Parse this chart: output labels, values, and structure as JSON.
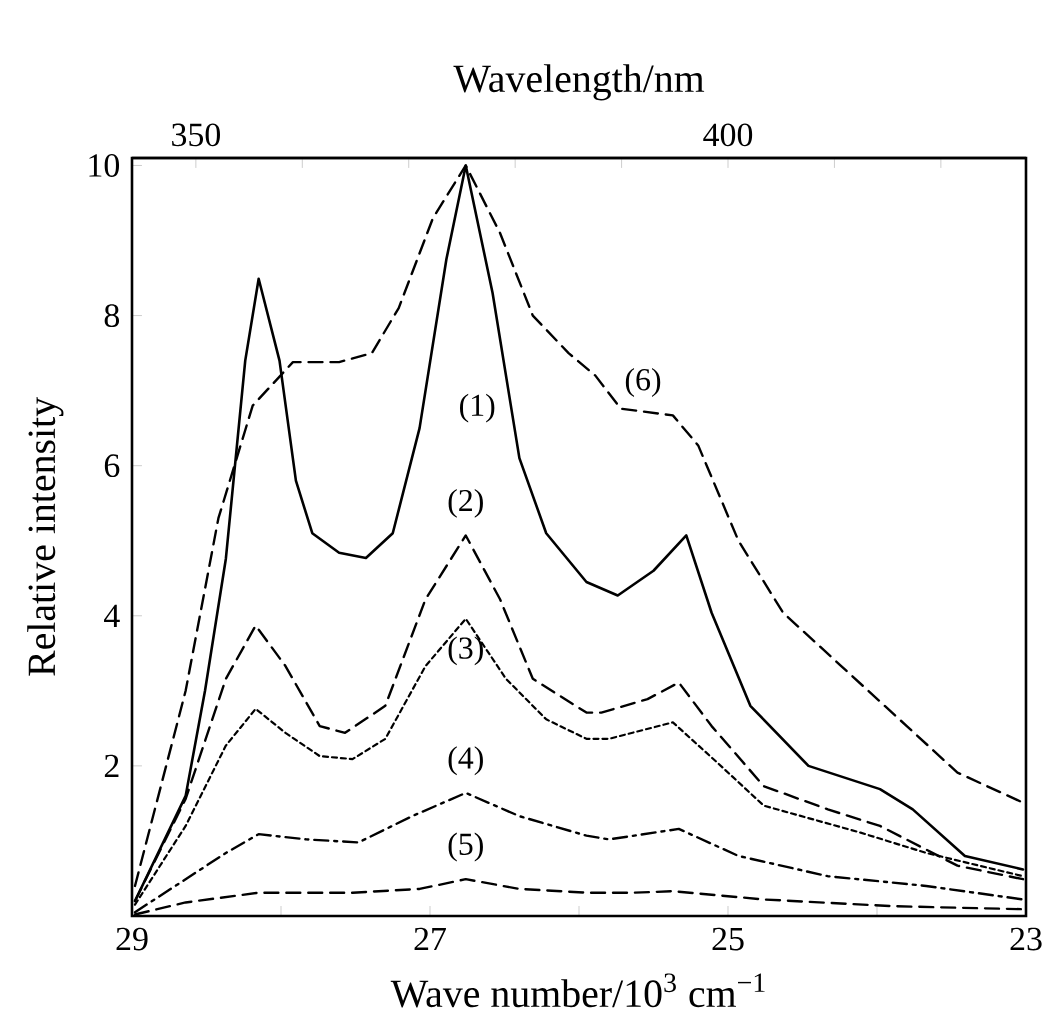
{
  "chart_data": {
    "type": "line",
    "xlabel": "Wave number/10$^{3}$ cm$^{−1}$",
    "ylabel": "Relative intensity",
    "x2label": "Wavelength/nm",
    "xlim": [
      29,
      23
    ],
    "xticks": [
      29,
      {
        "value": 28,
        "label": null
      },
      27,
      {
        "value": 26,
        "label": null
      },
      25,
      {
        "value": 24,
        "label": null
      },
      23
    ],
    "ylim": [
      0,
      10.1
    ],
    "yticks": [
      2,
      4,
      6,
      8,
      10
    ],
    "x2lim": [
      344,
      428
    ],
    "x2ticks": [
      350,
      {
        "value": 360,
        "label": null
      },
      {
        "value": 370,
        "label": null
      },
      {
        "value": 380,
        "label": null
      },
      {
        "value": 390,
        "label": null
      },
      400,
      {
        "value": 410,
        "label": null
      },
      {
        "value": 420,
        "label": null
      }
    ],
    "series": [
      {
        "name": "(1)",
        "color": "#000000",
        "line_style": "solid",
        "x": [
          28.98,
          28.64,
          28.51,
          28.37,
          28.24,
          28.15,
          28.01,
          27.9,
          27.79,
          27.61,
          27.43,
          27.25,
          27.07,
          26.89,
          26.76,
          26.58,
          26.4,
          26.22,
          25.95,
          25.74,
          25.5,
          25.28,
          25.11,
          24.85,
          24.46,
          23.98,
          23.76,
          23.41,
          23.02
        ],
        "values": [
          0.2,
          1.6,
          3.0,
          4.76,
          7.4,
          8.49,
          7.4,
          5.8,
          5.1,
          4.84,
          4.77,
          5.1,
          6.5,
          8.75,
          10.0,
          8.3,
          6.1,
          5.1,
          4.45,
          4.27,
          4.6,
          5.07,
          4.04,
          2.8,
          2.0,
          1.69,
          1.42,
          0.8,
          0.62
        ]
      },
      {
        "name": "(2)",
        "color": "#000000",
        "line_style": "dashed",
        "x": [
          28.98,
          28.64,
          28.37,
          28.17,
          27.97,
          27.74,
          27.57,
          27.3,
          27.03,
          26.76,
          26.53,
          26.31,
          25.95,
          25.85,
          25.54,
          25.33,
          25.11,
          24.76,
          24.33,
          23.98,
          23.46,
          23.02
        ],
        "values": [
          0.2,
          1.56,
          3.16,
          3.87,
          3.33,
          2.53,
          2.44,
          2.8,
          4.22,
          5.07,
          4.22,
          3.16,
          2.71,
          2.71,
          2.89,
          3.11,
          2.53,
          1.73,
          1.42,
          1.2,
          0.67,
          0.49
        ]
      },
      {
        "name": "(3)",
        "color": "#000000",
        "line_style": "dotted",
        "x": [
          28.98,
          28.64,
          28.37,
          28.17,
          27.97,
          27.74,
          27.52,
          27.3,
          27.03,
          26.76,
          26.49,
          26.22,
          25.95,
          25.8,
          25.37,
          25.07,
          24.76,
          24.11,
          23.67,
          23.02
        ],
        "values": [
          0.15,
          1.2,
          2.27,
          2.76,
          2.44,
          2.13,
          2.09,
          2.36,
          3.33,
          3.96,
          3.16,
          2.62,
          2.36,
          2.36,
          2.58,
          2.04,
          1.47,
          1.11,
          0.84,
          0.53
        ]
      },
      {
        "name": "(4)",
        "color": "#000000",
        "line_style": "dashdot",
        "x": [
          28.98,
          28.64,
          28.37,
          28.15,
          27.83,
          27.48,
          27.12,
          26.76,
          26.4,
          25.95,
          25.8,
          25.33,
          24.93,
          24.33,
          23.67,
          23.02
        ],
        "values": [
          0.05,
          0.49,
          0.84,
          1.09,
          1.02,
          0.98,
          1.33,
          1.64,
          1.33,
          1.07,
          1.02,
          1.16,
          0.8,
          0.53,
          0.4,
          0.22
        ]
      },
      {
        "name": "(5)",
        "color": "#000000",
        "line_style": "dashed",
        "x": [
          28.98,
          28.64,
          28.15,
          27.52,
          27.07,
          26.76,
          26.4,
          25.95,
          25.63,
          25.37,
          24.76,
          23.89,
          23.02
        ],
        "values": [
          0.02,
          0.18,
          0.31,
          0.31,
          0.36,
          0.49,
          0.36,
          0.31,
          0.31,
          0.33,
          0.22,
          0.13,
          0.09
        ]
      },
      {
        "name": "(6)",
        "color": "#000000",
        "line_style": "dashed",
        "x": [
          28.98,
          28.64,
          28.42,
          28.19,
          27.92,
          27.61,
          27.39,
          27.21,
          26.98,
          26.76,
          26.53,
          26.31,
          26.07,
          25.89,
          25.72,
          25.37,
          25.2,
          24.93,
          24.63,
          24.24,
          23.8,
          23.46,
          23.02
        ],
        "values": [
          0.4,
          3.0,
          5.3,
          6.8,
          7.38,
          7.38,
          7.5,
          8.1,
          9.3,
          10.0,
          9.1,
          8.0,
          7.5,
          7.2,
          6.76,
          6.67,
          6.27,
          5.0,
          4.04,
          3.33,
          2.53,
          1.91,
          1.51
        ]
      }
    ]
  }
}
